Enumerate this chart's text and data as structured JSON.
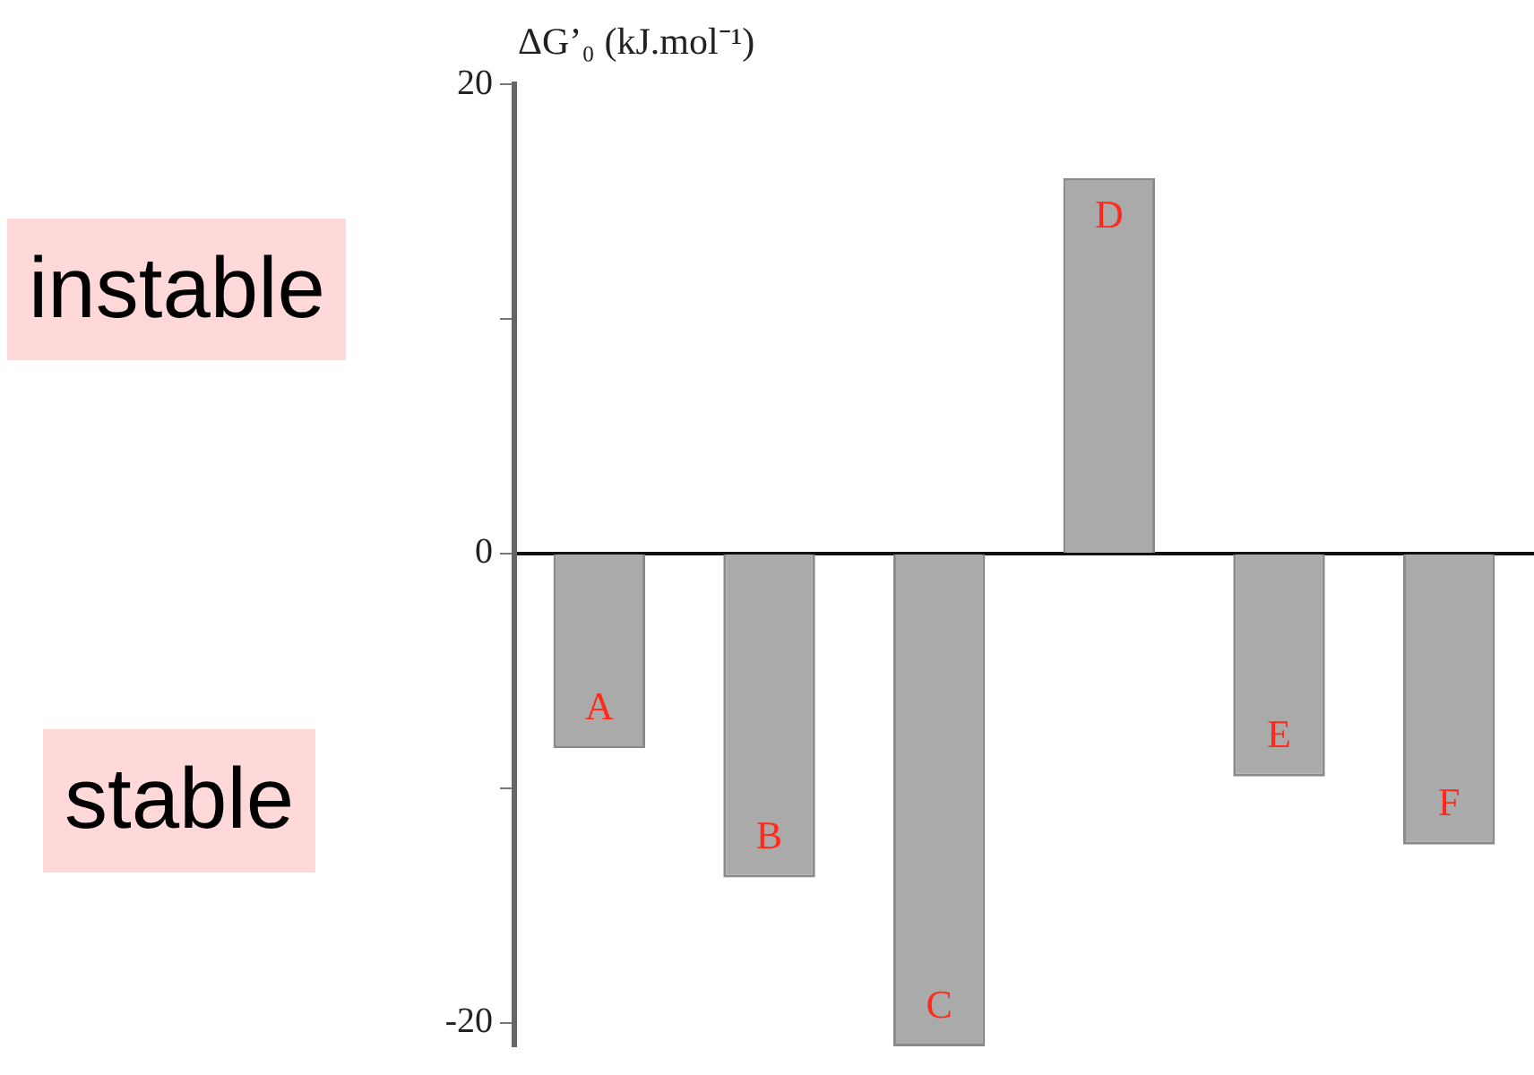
{
  "chart_data": {
    "type": "bar",
    "ylabel": "ΔG’₀ (kJ.mol⁻¹)",
    "categories": [
      "A",
      "B",
      "C",
      "D",
      "E",
      "F"
    ],
    "values": [
      -8.3,
      -13.8,
      -21,
      16,
      -9.5,
      -12.4
    ],
    "color": "#aaaaaa",
    "ylim": [
      -21,
      20
    ],
    "yticks": [
      20,
      {
        "value": 10,
        "label": null
      },
      0,
      {
        "value": -10,
        "label": null
      },
      -20
    ],
    "annotations": [
      "instable",
      "stable"
    ]
  }
}
